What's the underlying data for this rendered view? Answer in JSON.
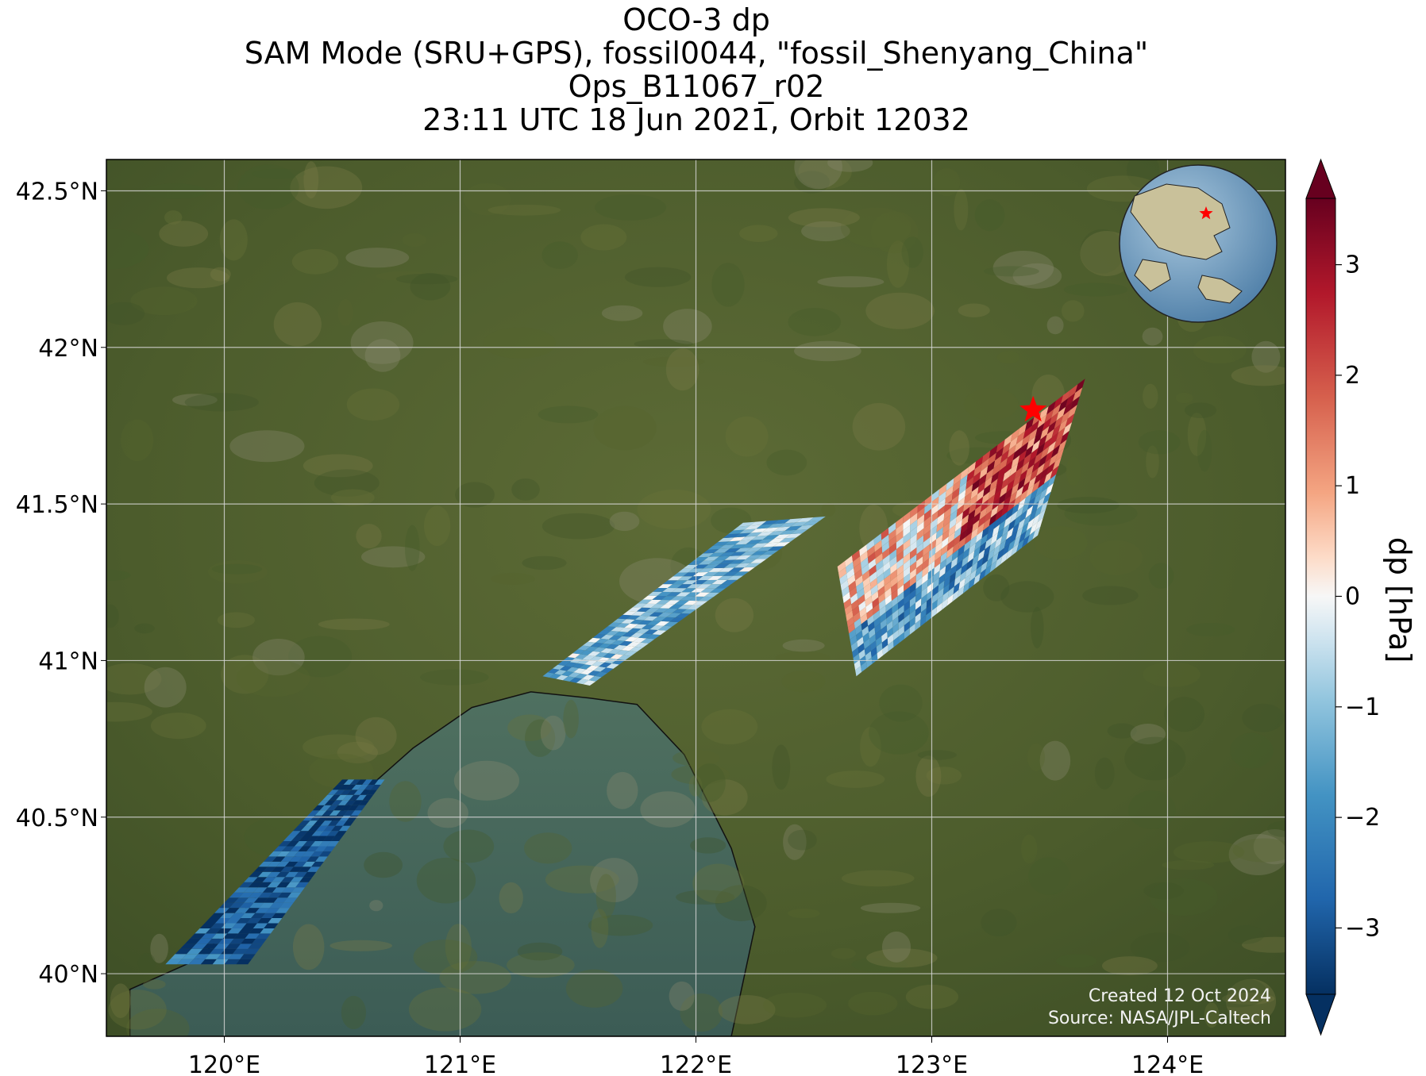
{
  "title": {
    "line1": "OCO-3 dp",
    "line2": "SAM Mode (SRU+GPS), fossil0044, \"fossil_Shenyang_China\"",
    "line3": "Ops_B11067_r02",
    "line4": "23:11 UTC 18 Jun 2021, Orbit 12032"
  },
  "map": {
    "lon_range": [
      119.5,
      124.5
    ],
    "lat_range": [
      39.8,
      42.6
    ],
    "lon_ticks": [
      {
        "value": 120,
        "label": "120°E"
      },
      {
        "value": 121,
        "label": "121°E"
      },
      {
        "value": 122,
        "label": "122°E"
      },
      {
        "value": 123,
        "label": "123°E"
      },
      {
        "value": 124,
        "label": "124°E"
      }
    ],
    "lat_ticks": [
      {
        "value": 40,
        "label": "40°N"
      },
      {
        "value": 40.5,
        "label": "40.5°N"
      },
      {
        "value": 41,
        "label": "41°N"
      },
      {
        "value": 41.5,
        "label": "41.5°N"
      },
      {
        "value": 42,
        "label": "42°N"
      },
      {
        "value": 42.5,
        "label": "42.5°N"
      }
    ],
    "gridlines": true,
    "target_marker": {
      "lon": 123.43,
      "lat": 41.8,
      "symbol": "star",
      "color": "#ff0000"
    },
    "credits": {
      "line1": "Created 12 Oct 2024",
      "line2": "Source: NASA/JPL-Caltech"
    }
  },
  "colorbar": {
    "label": "dp [hPa]",
    "range": [
      -3.6,
      3.6
    ],
    "colormap": "RdBu_r",
    "extend": "both",
    "ticks": [
      {
        "value": 3,
        "label": "3"
      },
      {
        "value": 2,
        "label": "2"
      },
      {
        "value": 1,
        "label": "1"
      },
      {
        "value": 0,
        "label": "0"
      },
      {
        "value": -1,
        "label": "−1"
      },
      {
        "value": -2,
        "label": "−2"
      },
      {
        "value": -3,
        "label": "−3"
      }
    ]
  },
  "inset_globe": {
    "marker": "star",
    "marker_color": "#ff0000"
  },
  "swaths": [
    {
      "corners": [
        [
          119.75,
          40.03
        ],
        [
          120.1,
          40.03
        ],
        [
          120.68,
          40.62
        ],
        [
          120.5,
          40.62
        ]
      ],
      "mean_dp": -3.0
    },
    {
      "corners": [
        [
          121.35,
          40.95
        ],
        [
          121.55,
          40.92
        ],
        [
          122.55,
          41.46
        ],
        [
          122.2,
          41.44
        ]
      ],
      "mean_dp": -1.2
    },
    {
      "corners": [
        [
          122.58,
          41.3
        ],
        [
          123.7,
          41.9
        ],
        [
          123.6,
          41.6
        ],
        [
          123.25,
          41.25
        ],
        [
          122.7,
          40.95
        ],
        [
          122.75,
          41.1
        ]
      ],
      "mean_dp": 1.0
    }
  ]
}
